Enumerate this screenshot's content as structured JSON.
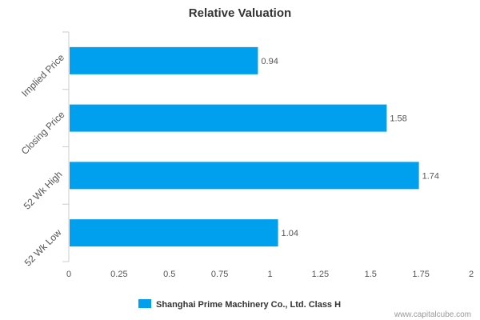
{
  "watermark": "www.capitalcube.com",
  "colors": {
    "bar": "#00a0ee",
    "axis": "#cccccc"
  },
  "chart_data": {
    "type": "bar",
    "orientation": "horizontal",
    "title": "Relative Valuation",
    "categories": [
      "Implied Price",
      "Closing Price",
      "52 Wk High",
      "52 Wk Low"
    ],
    "series": [
      {
        "name": "Shanghai Prime Machinery Co., Ltd. Class H",
        "values": [
          0.94,
          1.58,
          1.74,
          1.04
        ],
        "color": "#00a0ee"
      }
    ],
    "data_labels": [
      "0.94",
      "1.58",
      "1.74",
      "1.04"
    ],
    "xlim": [
      0,
      2
    ],
    "xticks": [
      0,
      0.25,
      0.5,
      0.75,
      1,
      1.25,
      1.5,
      1.75,
      2
    ],
    "xtick_labels": [
      "0",
      "0.25",
      "0.5",
      "0.75",
      "1",
      "1.25",
      "1.5",
      "1.75",
      "2"
    ],
    "grid": false,
    "legend_position": "bottom-center"
  }
}
